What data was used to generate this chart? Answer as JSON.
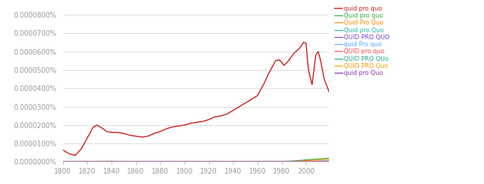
{
  "title": "",
  "xmin": 1800,
  "xmax": 2019,
  "ymin": 0,
  "ymax": 8.5e-07,
  "yticks": [
    0,
    1e-07,
    2e-07,
    3e-07,
    4e-07,
    5e-07,
    6e-07,
    7e-07,
    8e-07
  ],
  "xticks": [
    1800,
    1820,
    1840,
    1860,
    1880,
    1900,
    1920,
    1940,
    1960,
    1980,
    2000
  ],
  "series": [
    {
      "label": "quid pro quo",
      "color": "#cc2222"
    },
    {
      "label": "Quid pro quo",
      "color": "#33aa33"
    },
    {
      "label": "Quid Pro Quo",
      "color": "#ff8800"
    },
    {
      "label": "Quid pro Quo",
      "color": "#22bbaa"
    },
    {
      "label": "QUID PRO QUO",
      "color": "#7744cc"
    },
    {
      "label": "quid Pro quo",
      "color": "#55aaff"
    },
    {
      "label": "QUID pro quo",
      "color": "#ff4444"
    },
    {
      "label": "QUID PRO QUo",
      "color": "#22aa88"
    },
    {
      "label": "QUID PRO Quo",
      "color": "#ff9900"
    },
    {
      "label": "quid pro Quo",
      "color": "#8833aa"
    }
  ],
  "background_color": "#ffffff",
  "grid_color": "#cccccc"
}
